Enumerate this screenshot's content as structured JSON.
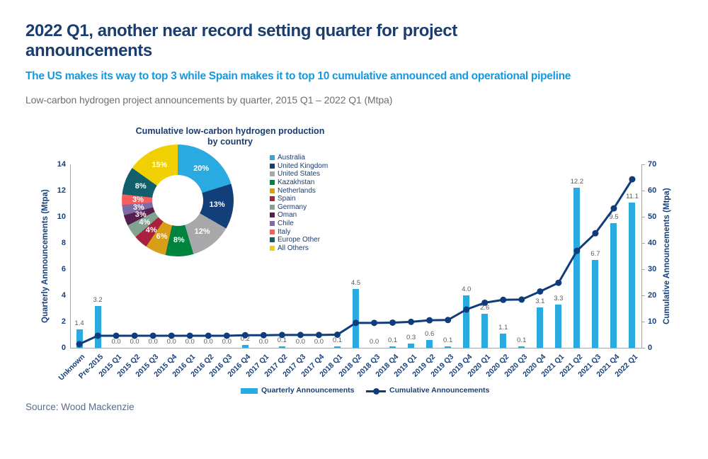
{
  "header": {
    "title": "2022 Q1, another near record setting quarter for project announcements",
    "subtitle": "The US makes its way to top 3 while Spain makes it to top 10 cumulative announced and operational pipeline",
    "description": "Low-carbon hydrogen project announcements  by quarter, 2015 Q1 – 2022 Q1 (Mtpa)"
  },
  "source": "Source: Wood Mackenzie",
  "colors": {
    "title_navy": "#1b3c6e",
    "subtitle_blue": "#1798dd",
    "bar_blue": "#29abe2",
    "line_navy": "#0f3d7c",
    "axis_text_navy": "#17407c",
    "data_label_gray": "#595959",
    "axis_line_gray": "#a6a6a6"
  },
  "chart_data": [
    {
      "type": "pie",
      "donut": true,
      "title": "Cumulative low-carbon hydrogen production by country",
      "title_lines": [
        "Cumulative low-carbon hydrogen production",
        "by country"
      ],
      "legend_position": "right",
      "slices": [
        {
          "label": "Australia",
          "value": 20,
          "pct_label": "20%",
          "color": "#29abe2"
        },
        {
          "label": "United Kingdom",
          "value": 13,
          "pct_label": "13%",
          "color": "#123e7a"
        },
        {
          "label": "United States",
          "value": 12,
          "pct_label": "12%",
          "color": "#a8a8ab"
        },
        {
          "label": "Kazakhstan",
          "value": 8,
          "pct_label": "8%",
          "color": "#00833e"
        },
        {
          "label": "Netherlands",
          "value": 6,
          "pct_label": "6%",
          "color": "#d89e18"
        },
        {
          "label": "Spain",
          "value": 4,
          "pct_label": "4%",
          "color": "#ab1f3f"
        },
        {
          "label": "Germany",
          "value": 4,
          "pct_label": "4%",
          "color": "#82a38f"
        },
        {
          "label": "Oman",
          "value": 3,
          "pct_label": "3%",
          "color": "#571f4e"
        },
        {
          "label": "Chile",
          "value": 3,
          "pct_label": "3%",
          "color": "#7d6ba3"
        },
        {
          "label": "Italy",
          "value": 3,
          "pct_label": "3%",
          "color": "#fb5c5c"
        },
        {
          "label": "Europe Other",
          "value": 8,
          "pct_label": "8%",
          "color": "#115f6b"
        },
        {
          "label": "All Others",
          "value": 15,
          "pct_label": "15%",
          "color": "#f0d002"
        }
      ]
    },
    {
      "type": "bar",
      "categories": [
        "Unknown",
        "Pre-2015",
        "2015 Q1",
        "2015 Q2",
        "2015 Q3",
        "2015 Q4",
        "2016 Q1",
        "2016 Q2",
        "2016 Q3",
        "2016 Q4",
        "2017 Q1",
        "2017 Q2",
        "2017 Q3",
        "2017 Q4",
        "2018 Q1",
        "2018 Q2",
        "2018 Q3",
        "2018 Q4",
        "2019 Q1",
        "2019 Q2",
        "2019 Q3",
        "2019 Q4",
        "2020 Q1",
        "2020 Q2",
        "2020 Q3",
        "2020 Q4",
        "2021 Q1",
        "2021 Q2",
        "2021 Q3",
        "2021 Q4",
        "2022 Q1"
      ],
      "series": [
        {
          "name": "Quarterly Announcements",
          "type": "bar",
          "axis": "left",
          "color": "#29abe2",
          "values": [
            1.4,
            3.2,
            0.0,
            0.0,
            0.0,
            0.0,
            0.0,
            0.0,
            0.0,
            0.2,
            0.0,
            0.1,
            0.0,
            0.0,
            0.1,
            4.5,
            0.0,
            0.1,
            0.3,
            0.6,
            0.1,
            4.0,
            2.6,
            1.1,
            0.1,
            3.1,
            3.3,
            12.2,
            6.7,
            9.5,
            11.1
          ]
        },
        {
          "name": "Cumulative Announcements",
          "type": "line",
          "axis": "right",
          "color": "#0f3d7c",
          "values": [
            1.4,
            4.6,
            4.6,
            4.6,
            4.6,
            4.6,
            4.6,
            4.6,
            4.6,
            4.8,
            4.8,
            4.9,
            4.9,
            4.9,
            5.0,
            9.5,
            9.5,
            9.6,
            9.9,
            10.5,
            10.6,
            14.6,
            17.2,
            18.3,
            18.4,
            21.5,
            24.8,
            37.0,
            43.7,
            53.2,
            64.3
          ]
        }
      ],
      "left_axis": {
        "label": "Quarterly Annnouncements (Mtpa)",
        "min": 0,
        "max": 14,
        "ticks": [
          0,
          2,
          4,
          6,
          8,
          10,
          12,
          14
        ]
      },
      "right_axis": {
        "label": "Cumulative Announcements (Mtpa)",
        "min": 0,
        "max": 70,
        "ticks": [
          0,
          10,
          20,
          30,
          40,
          50,
          60,
          70
        ]
      },
      "grid": false,
      "data_labels": true
    }
  ],
  "bottom_legend": {
    "items": [
      {
        "label": "Quarterly Announcements",
        "swatch": "bar"
      },
      {
        "label": "Cumulative Announcements",
        "swatch": "line-dot"
      }
    ]
  }
}
